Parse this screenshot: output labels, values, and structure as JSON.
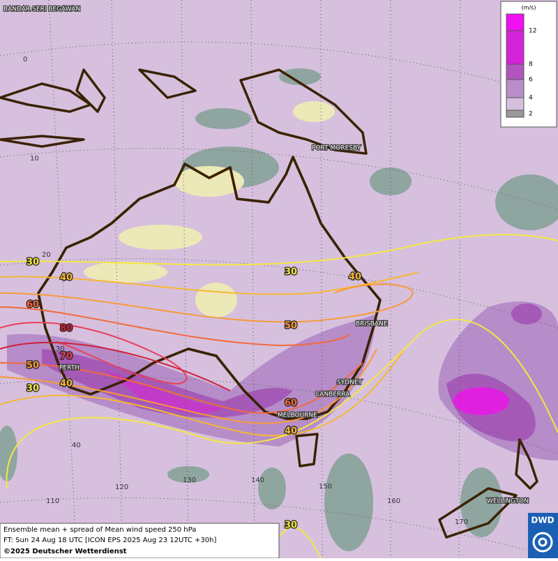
{
  "map": {
    "cities": [
      "BANDAR SERI BEGAWAN",
      "PORT MORESBY",
      "BRISBANE",
      "PERTH",
      "SYDNEY",
      "CANBERRA",
      "MELBOURNE",
      "WELLINGTON"
    ],
    "latitude_labels": [
      0,
      10,
      20,
      30,
      40
    ],
    "longitude_labels": [
      110,
      120,
      130,
      140,
      150,
      160,
      170
    ],
    "contour_labels": [
      30,
      40,
      60,
      80,
      70,
      50,
      40,
      30,
      30,
      40,
      50,
      60,
      40,
      30
    ]
  },
  "legend": {
    "unit": "(m/s)",
    "ticks": [
      12,
      8,
      6,
      4,
      2
    ]
  },
  "footer": {
    "lines": [
      "Ensemble mean + spread of Mean wind speed 250 hPa",
      "FT: Sun 24 Aug 18 UTC [ICON EPS 2025 Aug 23 12UTC +30h]"
    ],
    "credit": "©2025 Deutscher Wetterdienst"
  },
  "logo": "DWD"
}
